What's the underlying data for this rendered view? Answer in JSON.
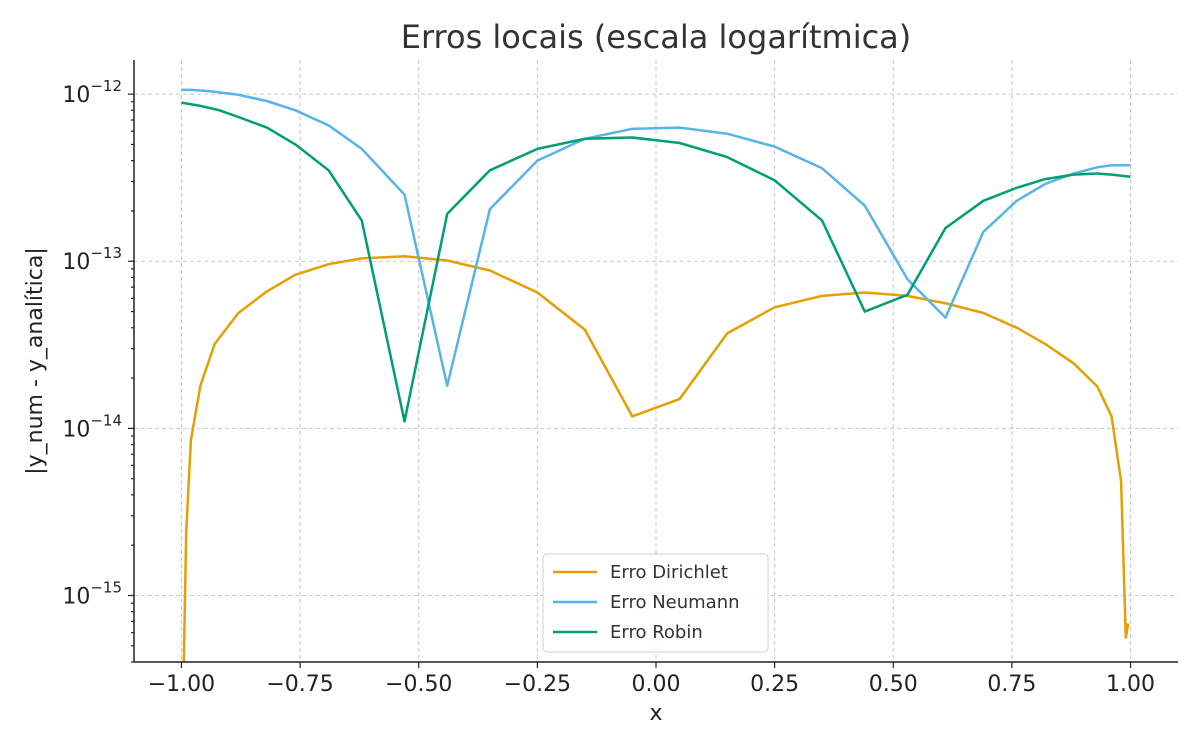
{
  "chart_data": {
    "type": "line",
    "title": "Erros locais (escala logarítmica)",
    "xlabel": "x",
    "ylabel": "|y_num - y_analítica|",
    "xlim": [
      -1.1,
      1.1
    ],
    "ylim": [
      4e-16,
      1.6e-12
    ],
    "yscale": "log",
    "grid": true,
    "legend_position": "bottom-center",
    "x_ticks": [
      -1.0,
      -0.75,
      -0.5,
      -0.25,
      0.0,
      0.25,
      0.5,
      0.75,
      1.0
    ],
    "x_tick_labels": [
      "−1.00",
      "−0.75",
      "−0.50",
      "−0.25",
      "0.00",
      "0.25",
      "0.50",
      "0.75",
      "1.00"
    ],
    "y_ticks": [
      {
        "value": 1e-12,
        "base": "10",
        "exp": "−12"
      },
      {
        "value": 1e-13,
        "base": "10",
        "exp": "−13"
      },
      {
        "value": 1e-14,
        "base": "10",
        "exp": "−14"
      },
      {
        "value": 1e-15,
        "base": "10",
        "exp": "−15"
      }
    ],
    "series": [
      {
        "name": "Erro Dirichlet",
        "color": "#E69F00",
        "x": [
          -0.995,
          -0.99,
          -0.98,
          -0.96,
          -0.93,
          -0.88,
          -0.82,
          -0.76,
          -0.69,
          -0.62,
          -0.53,
          -0.44,
          -0.35,
          -0.25,
          -0.15,
          -0.05,
          0.05,
          0.15,
          0.25,
          0.35,
          0.44,
          0.53,
          0.61,
          0.69,
          0.76,
          0.82,
          0.88,
          0.93,
          0.96,
          0.98,
          0.99,
          0.995
        ],
        "y": [
          4e-16,
          2.4e-15,
          8.5e-15,
          1.8e-14,
          3.2e-14,
          4.9e-14,
          6.6e-14,
          8.3e-14,
          9.6e-14,
          1.04e-13,
          1.07e-13,
          1.01e-13,
          8.8e-14,
          6.5e-14,
          3.9e-14,
          1.18e-14,
          1.5e-14,
          3.7e-14,
          5.3e-14,
          6.2e-14,
          6.5e-14,
          6.2e-14,
          5.6e-14,
          4.9e-14,
          4e-14,
          3.2e-14,
          2.45e-14,
          1.78e-14,
          1.18e-14,
          4.8e-15,
          5.6e-16,
          6.8e-16
        ]
      },
      {
        "name": "Erro Neumann",
        "color": "#56B4E9",
        "x": [
          -1.0,
          -0.98,
          -0.94,
          -0.88,
          -0.82,
          -0.76,
          -0.69,
          -0.62,
          -0.53,
          -0.44,
          -0.35,
          -0.25,
          -0.15,
          -0.05,
          0.05,
          0.15,
          0.25,
          0.35,
          0.44,
          0.53,
          0.61,
          0.69,
          0.76,
          0.82,
          0.88,
          0.93,
          0.96,
          1.0
        ],
        "y": [
          1.06e-12,
          1.06e-12,
          1.04e-12,
          9.9e-13,
          9.1e-13,
          8e-13,
          6.5e-13,
          4.7e-13,
          2.5e-13,
          1.8e-14,
          2.05e-13,
          4e-13,
          5.4e-13,
          6.2e-13,
          6.3e-13,
          5.8e-13,
          4.85e-13,
          3.6e-13,
          2.15e-13,
          7.8e-14,
          4.6e-14,
          1.5e-13,
          2.3e-13,
          2.9e-13,
          3.35e-13,
          3.65e-13,
          3.75e-13,
          3.75e-13
        ]
      },
      {
        "name": "Erro Robin",
        "color": "#009E73",
        "x": [
          -1.0,
          -0.96,
          -0.92,
          -0.88,
          -0.82,
          -0.76,
          -0.69,
          -0.62,
          -0.53,
          -0.44,
          -0.35,
          -0.25,
          -0.15,
          -0.05,
          0.05,
          0.15,
          0.25,
          0.35,
          0.44,
          0.53,
          0.61,
          0.69,
          0.76,
          0.82,
          0.88,
          0.93,
          0.96,
          1.0
        ],
        "y": [
          8.9e-13,
          8.5e-13,
          8e-13,
          7.3e-13,
          6.3e-13,
          5e-13,
          3.5e-13,
          1.75e-13,
          1.1e-14,
          1.92e-13,
          3.5e-13,
          4.7e-13,
          5.4e-13,
          5.5e-13,
          5.1e-13,
          4.2e-13,
          3.05e-13,
          1.75e-13,
          5e-14,
          6.3e-14,
          1.58e-13,
          2.3e-13,
          2.75e-13,
          3.1e-13,
          3.3e-13,
          3.35e-13,
          3.3e-13,
          3.2e-13
        ]
      }
    ]
  }
}
